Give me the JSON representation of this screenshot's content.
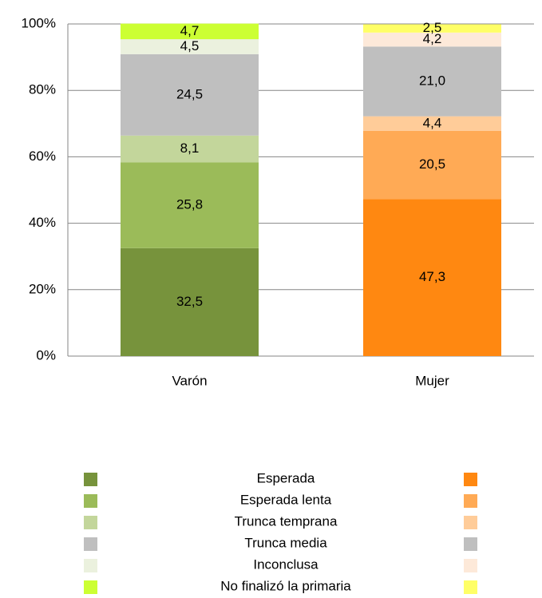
{
  "chart_data": {
    "type": "stacked_bar",
    "categories": [
      "Varón",
      "Mujer"
    ],
    "series": [
      {
        "name": "Esperada",
        "colors": [
          "#77933c",
          "#ff8811"
        ],
        "values": [
          32.5,
          47.3
        ],
        "value_labels": [
          "32,5",
          "47,3"
        ]
      },
      {
        "name": "Esperada lenta",
        "colors": [
          "#9bbb59",
          "#ffaa55"
        ],
        "values": [
          25.8,
          20.5
        ],
        "value_labels": [
          "25,8",
          "20,5"
        ]
      },
      {
        "name": "Trunca temprana",
        "colors": [
          "#c3d69b",
          "#ffcc99"
        ],
        "values": [
          8.1,
          4.4
        ],
        "value_labels": [
          "8,1",
          "4,4"
        ]
      },
      {
        "name": "Trunca media",
        "colors": [
          "#bfbfbf",
          "#bfbfbf"
        ],
        "values": [
          24.5,
          21.0
        ],
        "value_labels": [
          "24,5",
          "21,0"
        ]
      },
      {
        "name": "Inconclusa",
        "colors": [
          "#ebf1de",
          "#fde9d9"
        ],
        "values": [
          4.5,
          4.2
        ],
        "value_labels": [
          "4,5",
          "4,2"
        ]
      },
      {
        "name": "No finalizó la primaria",
        "colors": [
          "#ccff33",
          "#ffff66"
        ],
        "values": [
          4.7,
          2.5
        ],
        "value_labels": [
          "4,7",
          "2,5"
        ]
      }
    ],
    "ylim": [
      0,
      100
    ],
    "yticks": [
      {
        "value": 0,
        "label": "0%"
      },
      {
        "value": 20,
        "label": "20%"
      },
      {
        "value": 40,
        "label": "40%"
      },
      {
        "value": 60,
        "label": "60%"
      },
      {
        "value": 80,
        "label": "80%"
      },
      {
        "value": 100,
        "label": "100%"
      }
    ],
    "grid": true
  }
}
